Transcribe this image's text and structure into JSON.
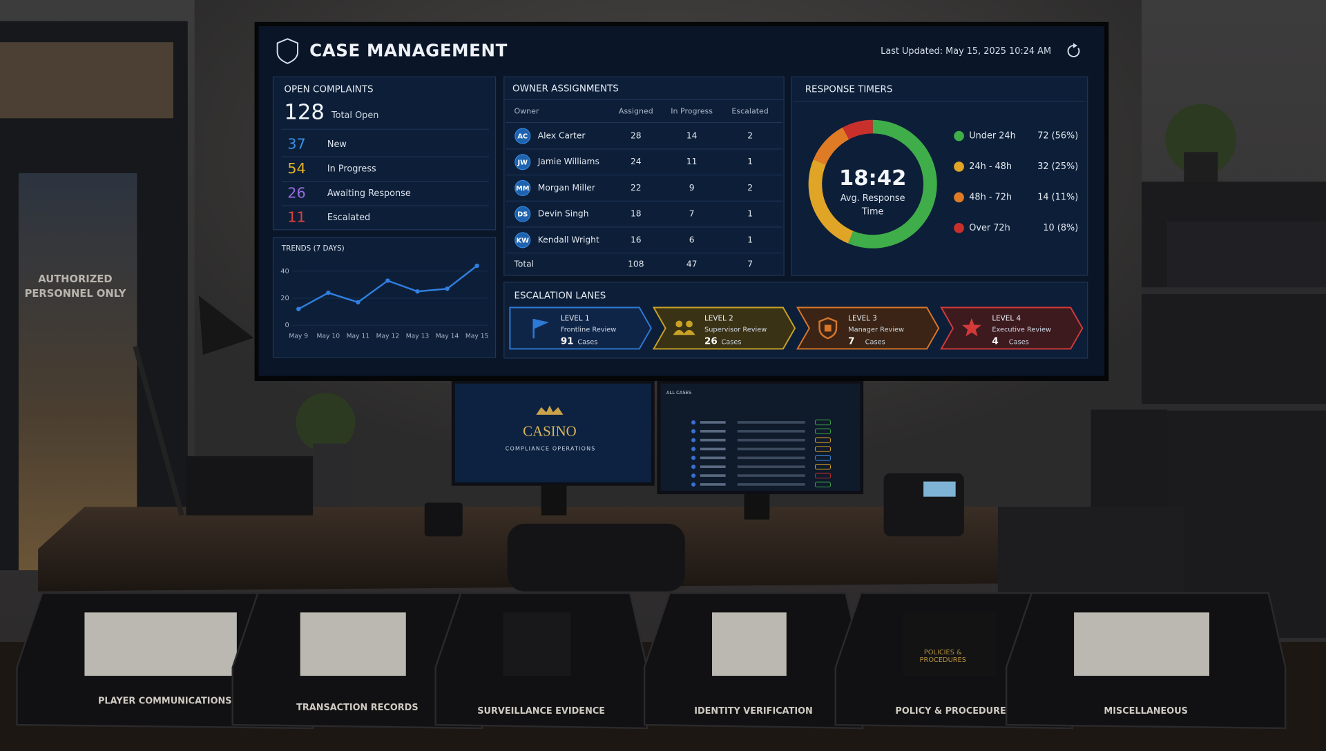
{
  "header": {
    "title": "CASE MANAGEMENT",
    "last_updated": "Last Updated: May 15, 2025 10:24 AM"
  },
  "open_complaints": {
    "title": "OPEN COMPLAINTS",
    "total": 128,
    "total_label": "Total Open",
    "items": [
      {
        "value": 37,
        "label": "New",
        "color": "#3b8fe8"
      },
      {
        "value": 54,
        "label": "In Progress",
        "color": "#e3b02a"
      },
      {
        "value": 26,
        "label": "Awaiting Response",
        "color": "#9a6be0"
      },
      {
        "value": 11,
        "label": "Escalated",
        "color": "#e0403a"
      }
    ]
  },
  "owner_assignments": {
    "title": "OWNER ASSIGNMENTS",
    "columns": [
      "Owner",
      "Assigned",
      "In Progress",
      "Escalated"
    ],
    "rows": [
      {
        "initials": "AC",
        "name": "Alex Carter",
        "assigned": 28,
        "in_progress": 14,
        "escalated": 2
      },
      {
        "initials": "JW",
        "name": "Jamie Williams",
        "assigned": 24,
        "in_progress": 11,
        "escalated": 1
      },
      {
        "initials": "MM",
        "name": "Morgan Miller",
        "assigned": 22,
        "in_progress": 9,
        "escalated": 2
      },
      {
        "initials": "DS",
        "name": "Devin Singh",
        "assigned": 18,
        "in_progress": 7,
        "escalated": 1
      },
      {
        "initials": "KW",
        "name": "Kendall Wright",
        "assigned": 16,
        "in_progress": 6,
        "escalated": 1
      }
    ],
    "total": {
      "label": "Total",
      "assigned": 108,
      "in_progress": 47,
      "escalated": 7
    }
  },
  "chart_data": [
    {
      "type": "line",
      "title": "TRENDS (7 DAYS)",
      "categories": [
        "May 9",
        "May 10",
        "May 11",
        "May 12",
        "May 13",
        "May 14",
        "May 15"
      ],
      "values": [
        12,
        24,
        17,
        33,
        25,
        27,
        44
      ],
      "ylim": [
        0,
        40
      ],
      "yticks": [
        0,
        20,
        40
      ],
      "color": "#2f7fe0",
      "grid": true
    },
    {
      "type": "pie",
      "title": "RESPONSE TIMERS",
      "center_value": "18:42",
      "center_label": [
        "Avg. Response",
        "Time"
      ],
      "categories": [
        "Under 24h",
        "24h - 48h",
        "48h - 72h",
        "Over 72h"
      ],
      "values": [
        72,
        32,
        14,
        10
      ],
      "value_labels": [
        "72 (56%)",
        "32 (25%)",
        "14 (11%)",
        "10 (8%)"
      ],
      "colors": [
        "#3fae4a",
        "#e0a526",
        "#e07b25",
        "#c9302c"
      ]
    }
  ],
  "escalation_lanes": {
    "title": "ESCALATION LANES",
    "lanes": [
      {
        "level": "LEVEL 1",
        "name": "Frontline Review",
        "count": 91,
        "unit": "Cases",
        "color": "#2d7ad6",
        "fill": "#0f2548"
      },
      {
        "level": "LEVEL 2",
        "name": "Supervisor Review",
        "count": 26,
        "unit": "Cases",
        "color": "#c9a227",
        "fill": "#3a3214"
      },
      {
        "level": "LEVEL 3",
        "name": "Manager Review",
        "count": 7,
        "unit": "Cases",
        "color": "#d9762a",
        "fill": "#3b2415"
      },
      {
        "level": "LEVEL 4",
        "name": "Executive Review",
        "count": 4,
        "unit": "Cases",
        "color": "#d23a3a",
        "fill": "#3d1a1e"
      }
    ]
  },
  "scene": {
    "sign": [
      "AUTHORIZED",
      "PERSONNEL ONLY"
    ],
    "monitor_brand": "CASINO",
    "monitor_subtitle": "COMPLIANCE OPERATIONS",
    "monitor_table_title": "ALL CASES",
    "binder_text": [
      "POLICIES &",
      "PROCEDURES"
    ],
    "trays": [
      "PLAYER COMMUNICATIONS",
      "TRANSACTION RECORDS",
      "SURVEILLANCE EVIDENCE",
      "IDENTITY VERIFICATION",
      "POLICY & PROCEDURES",
      "MISCELLANEOUS"
    ]
  }
}
